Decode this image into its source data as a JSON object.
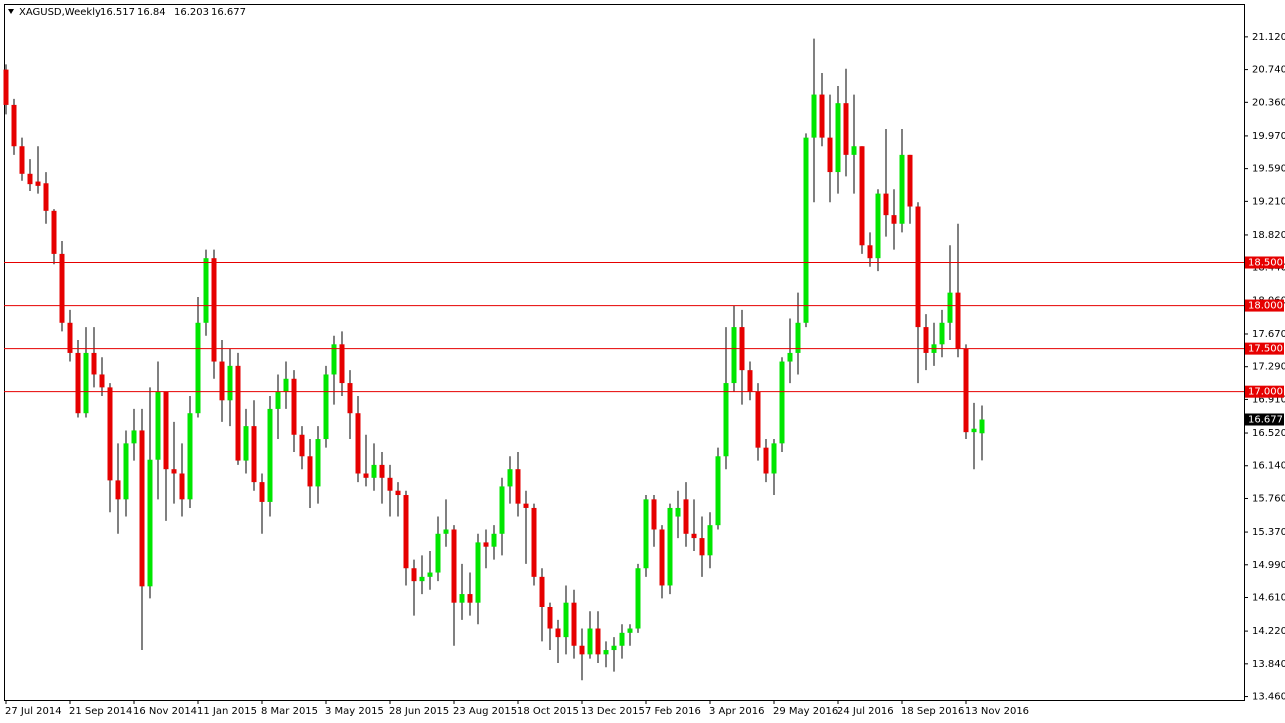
{
  "chart_data": {
    "type": "candlestick",
    "title": "XAGUSD,Weekly",
    "categories": [
      "27 Jul 2014",
      null,
      null,
      null,
      null,
      null,
      null,
      null,
      "21 Sep 2014",
      null,
      null,
      null,
      null,
      null,
      null,
      null,
      "16 Nov 2014",
      null,
      null,
      null,
      null,
      null,
      null,
      null,
      "11 Jan 2015",
      null,
      null,
      null,
      null,
      null,
      null,
      null,
      "8 Mar 2015",
      null,
      null,
      null,
      null,
      null,
      null,
      null,
      "3 May 2015",
      null,
      null,
      null,
      null,
      null,
      null,
      null,
      "28 Jun 2015",
      null,
      null,
      null,
      null,
      null,
      null,
      null,
      "23 Aug 2015",
      null,
      null,
      null,
      null,
      null,
      null,
      null,
      "18 Oct 2015",
      null,
      null,
      null,
      null,
      null,
      null,
      null,
      "13 Dec 2015",
      null,
      null,
      null,
      null,
      null,
      null,
      null,
      "7 Feb 2016",
      null,
      null,
      null,
      null,
      null,
      null,
      null,
      "3 Apr 2016",
      null,
      null,
      null,
      null,
      null,
      null,
      null,
      "29 May 2016",
      null,
      null,
      null,
      null,
      null,
      null,
      null,
      "24 Jul 2016",
      null,
      null,
      null,
      null,
      null,
      null,
      null,
      "18 Sep 2016",
      null,
      null,
      null,
      null,
      null,
      null,
      null,
      "13 Nov 2016",
      null,
      null
    ],
    "open": [
      20.74,
      20.33,
      19.85,
      19.53,
      19.44,
      19.42,
      19.1,
      18.6,
      17.8,
      17.45,
      16.75,
      17.45,
      17.2,
      17.05,
      15.97,
      15.75,
      16.4,
      16.55,
      14.74,
      16.21,
      17.0,
      16.1,
      16.05,
      15.75,
      16.75,
      17.8,
      18.55,
      17.35,
      16.9,
      17.3,
      16.2,
      16.6,
      15.95,
      15.72,
      16.8,
      17.0,
      17.15,
      16.5,
      16.25,
      15.9,
      16.45,
      17.2,
      17.55,
      17.1,
      16.75,
      16.05,
      16.0,
      16.15,
      16.0,
      15.85,
      15.8,
      14.95,
      14.8,
      14.85,
      14.9,
      15.35,
      15.4,
      14.55,
      14.65,
      14.55,
      15.25,
      15.2,
      15.35,
      15.9,
      16.1,
      15.7,
      15.65,
      14.85,
      14.5,
      14.25,
      14.15,
      14.55,
      14.05,
      13.95,
      14.25,
      13.95,
      14.0,
      14.05,
      14.2,
      14.25,
      14.95,
      15.75,
      15.4,
      14.75,
      15.55,
      15.75,
      15.35,
      15.3,
      15.1,
      15.45,
      16.25,
      17.1,
      17.75,
      17.25,
      17.0,
      16.35,
      16.05,
      16.4,
      17.35,
      17.45,
      17.8,
      19.95,
      20.45,
      19.95,
      19.55,
      20.35,
      19.75,
      19.85,
      18.7,
      18.55,
      19.3,
      19.05,
      18.95,
      19.75,
      19.15,
      17.75,
      17.45,
      17.55,
      17.8,
      18.15,
      17.5,
      16.53,
      16.517
    ],
    "high": [
      20.8,
      20.4,
      19.95,
      19.7,
      19.85,
      19.55,
      19.12,
      18.75,
      17.95,
      17.6,
      17.75,
      17.75,
      17.4,
      17.1,
      16.4,
      16.55,
      16.8,
      16.8,
      17.05,
      17.35,
      17.0,
      16.65,
      16.4,
      16.95,
      18.1,
      18.65,
      18.65,
      17.6,
      17.5,
      17.45,
      16.8,
      16.9,
      16.05,
      16.95,
      17.2,
      17.35,
      17.25,
      16.6,
      16.45,
      16.6,
      17.3,
      17.65,
      17.7,
      17.25,
      16.95,
      16.5,
      16.4,
      16.3,
      16.15,
      15.95,
      15.85,
      15.05,
      15.1,
      15.15,
      15.55,
      15.75,
      15.45,
      15.0,
      14.9,
      15.35,
      15.4,
      15.45,
      16.0,
      16.25,
      16.3,
      15.85,
      15.7,
      14.95,
      14.55,
      14.35,
      14.75,
      14.7,
      14.25,
      14.45,
      14.45,
      14.1,
      14.15,
      14.3,
      14.3,
      15.0,
      15.8,
      15.8,
      15.45,
      15.7,
      15.85,
      15.95,
      15.75,
      15.55,
      15.6,
      16.35,
      17.75,
      18.0,
      17.95,
      17.35,
      17.1,
      16.45,
      16.45,
      17.4,
      17.85,
      18.15,
      20.0,
      21.1,
      20.7,
      20.45,
      20.55,
      20.75,
      20.45,
      19.85,
      18.85,
      19.35,
      20.05,
      19.35,
      20.05,
      19.75,
      19.2,
      17.9,
      17.8,
      17.95,
      18.7,
      18.95,
      17.55,
      16.87,
      16.84
    ],
    "low": [
      20.22,
      19.75,
      19.45,
      19.33,
      19.3,
      18.95,
      18.48,
      17.7,
      17.35,
      16.7,
      16.7,
      17.05,
      16.95,
      15.6,
      15.35,
      15.55,
      16.2,
      14.0,
      14.6,
      15.75,
      15.5,
      15.7,
      15.55,
      15.65,
      16.7,
      17.65,
      17.15,
      16.65,
      16.6,
      16.15,
      16.05,
      15.85,
      15.35,
      15.55,
      16.45,
      16.8,
      16.3,
      16.1,
      15.65,
      15.7,
      16.35,
      16.85,
      16.95,
      16.45,
      15.95,
      15.9,
      15.85,
      15.7,
      15.55,
      15.55,
      14.75,
      14.4,
      14.65,
      14.7,
      14.8,
      15.2,
      14.05,
      14.35,
      14.4,
      14.3,
      14.95,
      15.05,
      15.1,
      15.7,
      15.55,
      15.0,
      14.75,
      14.1,
      14.0,
      13.85,
      13.95,
      13.9,
      13.65,
      13.9,
      13.85,
      13.8,
      13.75,
      13.9,
      14.05,
      14.2,
      14.85,
      15.2,
      14.6,
      14.65,
      15.3,
      15.2,
      15.15,
      14.85,
      14.95,
      15.4,
      16.1,
      17.0,
      16.85,
      16.9,
      16.2,
      15.95,
      15.8,
      16.3,
      17.1,
      17.2,
      17.75,
      19.2,
      19.85,
      19.2,
      19.3,
      19.5,
      19.3,
      18.6,
      18.45,
      18.4,
      18.8,
      18.65,
      18.85,
      18.95,
      17.1,
      17.25,
      17.3,
      17.4,
      17.6,
      17.4,
      16.45,
      16.1,
      16.203
    ],
    "close": [
      20.33,
      19.85,
      19.53,
      19.41,
      19.39,
      19.1,
      18.6,
      17.8,
      17.45,
      16.75,
      17.45,
      17.2,
      17.05,
      15.97,
      15.75,
      16.4,
      16.55,
      14.74,
      16.21,
      17.0,
      16.1,
      16.05,
      15.75,
      16.75,
      17.8,
      18.55,
      17.35,
      16.9,
      17.3,
      16.2,
      16.6,
      15.95,
      15.72,
      16.8,
      17.0,
      17.15,
      16.5,
      16.25,
      15.9,
      16.45,
      17.2,
      17.55,
      17.1,
      16.75,
      16.05,
      16.0,
      16.15,
      16.0,
      15.85,
      15.8,
      14.95,
      14.8,
      14.85,
      14.9,
      15.35,
      15.4,
      14.55,
      14.65,
      14.55,
      15.25,
      15.2,
      15.35,
      15.9,
      16.1,
      15.7,
      15.65,
      14.85,
      14.5,
      14.25,
      14.15,
      14.55,
      14.05,
      13.95,
      14.25,
      13.95,
      14.0,
      14.05,
      14.2,
      14.25,
      14.95,
      15.75,
      15.4,
      14.75,
      15.65,
      15.65,
      15.35,
      15.3,
      15.1,
      15.45,
      16.25,
      17.1,
      17.75,
      17.25,
      17.0,
      16.35,
      16.05,
      16.4,
      17.35,
      17.45,
      17.8,
      19.95,
      20.45,
      19.95,
      19.55,
      20.35,
      19.75,
      19.85,
      18.7,
      18.55,
      19.3,
      19.05,
      18.95,
      19.75,
      19.15,
      17.75,
      17.45,
      17.55,
      17.8,
      18.15,
      17.5,
      16.53,
      16.57,
      16.677
    ],
    "up_color": "#00e600",
    "down_color": "#e60000",
    "wick_color": "#000000",
    "levels": [
      {
        "value": 18.5,
        "label": "18.500"
      },
      {
        "value": 18,
        "label": "18.000"
      },
      {
        "value": 17.5,
        "label": "17.500"
      },
      {
        "value": 17,
        "label": "17.000"
      }
    ],
    "level_color": "#e60000",
    "ylim": [
      13.42,
      21.49
    ],
    "yticks": [
      {
        "value": 21.12,
        "label": "21.120"
      },
      {
        "value": 20.74,
        "label": "20.740"
      },
      {
        "value": 20.36,
        "label": "20.360"
      },
      {
        "value": 19.97,
        "label": "19.970"
      },
      {
        "value": 19.59,
        "label": "19.590"
      },
      {
        "value": 19.21,
        "label": "19.210"
      },
      {
        "value": 18.82,
        "label": "18.820"
      },
      {
        "value": 18.44,
        "label": "18.440"
      },
      {
        "value": 18.06,
        "label": "18.060"
      },
      {
        "value": 17.67,
        "label": "17.670"
      },
      {
        "value": 17.29,
        "label": "17.290"
      },
      {
        "value": 16.91,
        "label": "16.910"
      },
      {
        "value": 16.52,
        "label": "16.520"
      },
      {
        "value": 16.14,
        "label": "16.140"
      },
      {
        "value": 15.76,
        "label": "15.760"
      },
      {
        "value": 15.37,
        "label": "15.370"
      },
      {
        "value": 14.99,
        "label": "14.990"
      },
      {
        "value": 14.61,
        "label": "14.610"
      },
      {
        "value": 14.22,
        "label": "14.220"
      },
      {
        "value": 13.84,
        "label": "13.840"
      },
      {
        "value": 13.46,
        "label": "13.460"
      }
    ]
  }
}
